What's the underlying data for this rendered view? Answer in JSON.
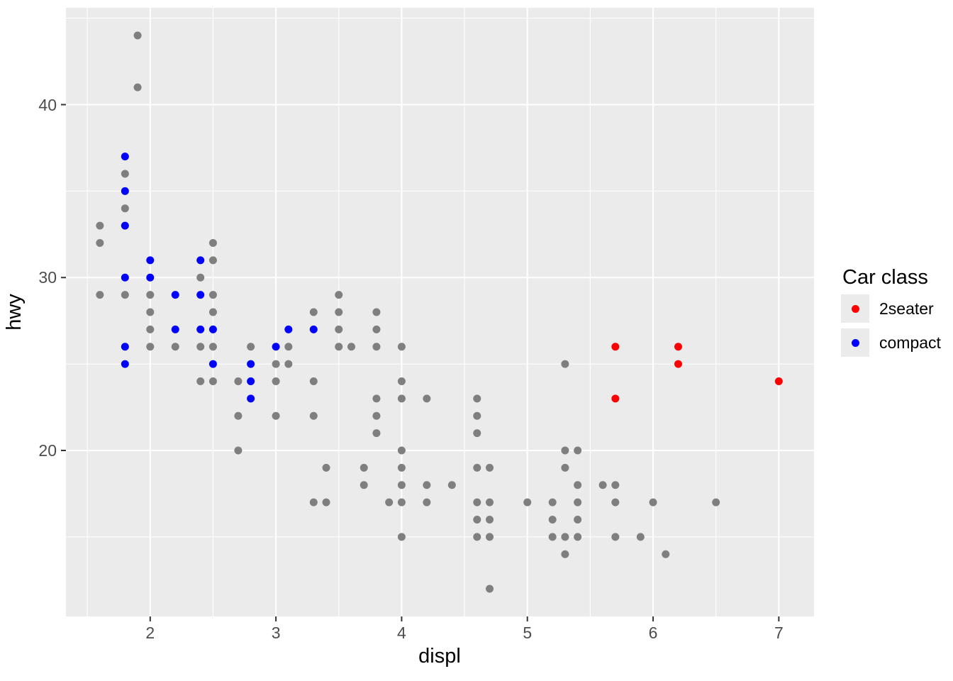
{
  "chart_data": {
    "type": "scatter",
    "title": "",
    "xlabel": "displ",
    "ylabel": "hwy",
    "x_ticks": [
      2,
      3,
      4,
      5,
      6,
      7
    ],
    "x_minor_ticks": [
      1.5,
      2.5,
      3.5,
      4.5,
      5.5,
      6.5
    ],
    "y_ticks": [
      20,
      30,
      40
    ],
    "y_minor_ticks": [
      15,
      25,
      35,
      45
    ],
    "xlim": [
      1.33,
      7.28
    ],
    "ylim": [
      10.4,
      45.6
    ],
    "grid": "on",
    "panel_bg": "#EBEBEB",
    "grid_color": "#FFFFFF",
    "tick_color": "#333333",
    "tick_label_color": "#4D4D4D",
    "point_radius": 5.5,
    "legend": {
      "title": "Car class",
      "position": "right",
      "key_bg": "#EBEBEB",
      "entries": [
        {
          "label": "2seater",
          "color": "#FF0000"
        },
        {
          "label": "compact",
          "color": "#0000FF"
        }
      ]
    },
    "series": [
      {
        "name": "other",
        "color": "#7F7F7F",
        "points": [
          [
            1.6,
            33
          ],
          [
            1.6,
            32
          ],
          [
            1.6,
            29
          ],
          [
            1.8,
            36
          ],
          [
            1.8,
            34
          ],
          [
            1.8,
            29
          ],
          [
            1.9,
            44
          ],
          [
            1.9,
            41
          ],
          [
            2.0,
            29
          ],
          [
            2.0,
            28
          ],
          [
            2.0,
            27
          ],
          [
            2.0,
            26
          ],
          [
            2.2,
            26
          ],
          [
            2.4,
            30
          ],
          [
            2.4,
            26
          ],
          [
            2.4,
            24
          ],
          [
            2.5,
            32
          ],
          [
            2.5,
            31
          ],
          [
            2.5,
            29
          ],
          [
            2.5,
            28
          ],
          [
            2.5,
            26
          ],
          [
            2.5,
            24
          ],
          [
            2.7,
            24
          ],
          [
            2.7,
            22
          ],
          [
            2.7,
            20
          ],
          [
            2.8,
            26
          ],
          [
            3.0,
            25
          ],
          [
            3.0,
            24
          ],
          [
            3.0,
            22
          ],
          [
            3.1,
            26
          ],
          [
            3.1,
            25
          ],
          [
            3.3,
            28
          ],
          [
            3.3,
            24
          ],
          [
            3.3,
            22
          ],
          [
            3.3,
            17
          ],
          [
            3.4,
            19
          ],
          [
            3.4,
            17
          ],
          [
            3.5,
            29
          ],
          [
            3.5,
            28
          ],
          [
            3.5,
            27
          ],
          [
            3.5,
            26
          ],
          [
            3.6,
            26
          ],
          [
            3.7,
            19
          ],
          [
            3.7,
            18
          ],
          [
            3.8,
            28
          ],
          [
            3.8,
            27
          ],
          [
            3.8,
            26
          ],
          [
            3.8,
            23
          ],
          [
            3.8,
            22
          ],
          [
            3.8,
            21
          ],
          [
            3.9,
            17
          ],
          [
            4.0,
            26
          ],
          [
            4.0,
            24
          ],
          [
            4.0,
            23
          ],
          [
            4.0,
            20
          ],
          [
            4.0,
            19
          ],
          [
            4.0,
            18
          ],
          [
            4.0,
            17
          ],
          [
            4.0,
            15
          ],
          [
            4.2,
            23
          ],
          [
            4.2,
            18
          ],
          [
            4.2,
            17
          ],
          [
            4.4,
            18
          ],
          [
            4.6,
            23
          ],
          [
            4.6,
            22
          ],
          [
            4.6,
            21
          ],
          [
            4.6,
            19
          ],
          [
            4.6,
            17
          ],
          [
            4.6,
            16
          ],
          [
            4.6,
            15
          ],
          [
            4.7,
            19
          ],
          [
            4.7,
            17
          ],
          [
            4.7,
            16
          ],
          [
            4.7,
            15
          ],
          [
            4.7,
            12
          ],
          [
            5.0,
            17
          ],
          [
            5.2,
            17
          ],
          [
            5.2,
            16
          ],
          [
            5.2,
            15
          ],
          [
            5.3,
            25
          ],
          [
            5.3,
            20
          ],
          [
            5.3,
            19
          ],
          [
            5.3,
            15
          ],
          [
            5.3,
            14
          ],
          [
            5.4,
            20
          ],
          [
            5.4,
            18
          ],
          [
            5.4,
            17
          ],
          [
            5.4,
            16
          ],
          [
            5.4,
            15
          ],
          [
            5.6,
            18
          ],
          [
            5.7,
            18
          ],
          [
            5.7,
            17
          ],
          [
            5.7,
            15
          ],
          [
            5.9,
            15
          ],
          [
            6.0,
            17
          ],
          [
            6.1,
            14
          ],
          [
            6.5,
            17
          ]
        ]
      },
      {
        "name": "compact",
        "color": "#0000FF",
        "points": [
          [
            1.8,
            37
          ],
          [
            1.8,
            35
          ],
          [
            1.8,
            33
          ],
          [
            1.8,
            30
          ],
          [
            1.8,
            26
          ],
          [
            1.8,
            25
          ],
          [
            2.0,
            31
          ],
          [
            2.0,
            30
          ],
          [
            2.2,
            29
          ],
          [
            2.2,
            27
          ],
          [
            2.4,
            31
          ],
          [
            2.4,
            29
          ],
          [
            2.4,
            27
          ],
          [
            2.5,
            27
          ],
          [
            2.5,
            25
          ],
          [
            2.8,
            25
          ],
          [
            2.8,
            24
          ],
          [
            2.8,
            23
          ],
          [
            3.0,
            26
          ],
          [
            3.1,
            27
          ],
          [
            3.3,
            27
          ]
        ]
      },
      {
        "name": "2seater",
        "color": "#FF0000",
        "points": [
          [
            5.7,
            26
          ],
          [
            5.7,
            23
          ],
          [
            6.2,
            26
          ],
          [
            6.2,
            25
          ],
          [
            7.0,
            24
          ]
        ]
      }
    ]
  }
}
